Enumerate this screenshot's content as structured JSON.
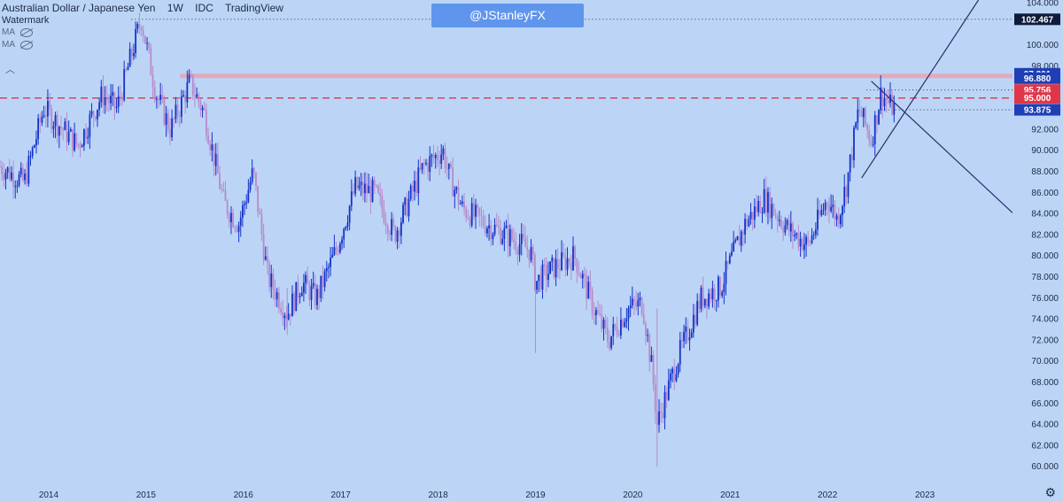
{
  "header": {
    "symbol": "Australian Dollar / Japanese Yen",
    "interval": "1W",
    "source": "IDC",
    "platform": "TradingView",
    "watermark_label": "Watermark",
    "indicators": [
      "MA",
      "MA"
    ]
  },
  "badge": "@JStanleyFX",
  "colors": {
    "background": "#bcd5f7",
    "candle_up": "#1432c8",
    "candle_down": "#b78acb",
    "resistance_band": "#e8a3b3",
    "red_line": "#e0364a",
    "trend_line": "#2d2d6b",
    "price_tag_blue": "#1e3fb5",
    "price_tag_red": "#e0364a"
  },
  "chart_data": {
    "type": "candlestick",
    "x_ticks": [
      "2014",
      "2015",
      "2016",
      "2017",
      "2018",
      "2019",
      "2020",
      "2021",
      "2022",
      "2023"
    ],
    "y_ticks": [
      "104.000",
      "100.000",
      "98.000",
      "92.000",
      "90.000",
      "88.000",
      "86.000",
      "84.000",
      "82.000",
      "80.000",
      "78.000",
      "76.000",
      "74.000",
      "72.000",
      "70.000",
      "68.000",
      "66.000",
      "64.000",
      "62.000",
      "60.000"
    ],
    "ylim": [
      58.5,
      104.3
    ],
    "xlim": [
      2013.5,
      2023.9
    ],
    "price_labels": [
      {
        "value": 102.467,
        "text": "102.467",
        "style": "dark"
      },
      {
        "value": 97.301,
        "text": "97.301",
        "style": "blue"
      },
      {
        "value": 96.88,
        "text": "96.880",
        "style": "blue"
      },
      {
        "value": 95.756,
        "text": "95.756",
        "style": "red"
      },
      {
        "value": 95.0,
        "text": "95.000",
        "style": "red"
      },
      {
        "value": 93.875,
        "text": "93.875",
        "style": "blue"
      }
    ],
    "resistance_zone": {
      "low": 96.88,
      "high": 97.301,
      "from": 2015.35
    },
    "dashed_red_level": 95.0,
    "dotted_levels": [
      {
        "value": 102.467,
        "from": 2014.85
      },
      {
        "value": 95.756,
        "from": 2022.4
      },
      {
        "value": 93.875,
        "from": 2022.55
      }
    ],
    "trend_lines": [
      {
        "x1": 2022.45,
        "y1": 96.6,
        "x2": 2023.9,
        "y2": 84.1
      },
      {
        "x1": 2022.35,
        "y1": 87.4,
        "x2": 2023.55,
        "y2": 104.3
      }
    ],
    "anchors": [
      [
        2013.5,
        88.5
      ],
      [
        2013.75,
        87.0
      ],
      [
        2013.95,
        94.0
      ],
      [
        2014.3,
        90.5
      ],
      [
        2014.55,
        95.3
      ],
      [
        2014.7,
        94.0
      ],
      [
        2014.95,
        102.5
      ],
      [
        2015.1,
        95.5
      ],
      [
        2015.25,
        92.0
      ],
      [
        2015.45,
        96.5
      ],
      [
        2015.6,
        93.5
      ],
      [
        2015.8,
        85.0
      ],
      [
        2015.95,
        83.0
      ],
      [
        2016.1,
        88.0
      ],
      [
        2016.25,
        78.0
      ],
      [
        2016.45,
        74.5
      ],
      [
        2016.6,
        77.5
      ],
      [
        2016.75,
        76.0
      ],
      [
        2016.95,
        80.5
      ],
      [
        2017.15,
        86.5
      ],
      [
        2017.35,
        86.0
      ],
      [
        2017.55,
        82.0
      ],
      [
        2017.85,
        88.5
      ],
      [
        2018.05,
        90.0
      ],
      [
        2018.1,
        88.0
      ],
      [
        2018.25,
        84.5
      ],
      [
        2018.5,
        83.0
      ],
      [
        2018.7,
        82.0
      ],
      [
        2018.95,
        80.5
      ],
      [
        2019.0,
        77.5
      ],
      [
        2019.2,
        79.0
      ],
      [
        2019.4,
        80.0
      ],
      [
        2019.6,
        75.0
      ],
      [
        2019.75,
        72.0
      ],
      [
        2019.95,
        75.0
      ],
      [
        2020.1,
        75.5
      ],
      [
        2020.2,
        69.0
      ],
      [
        2020.25,
        64.0
      ],
      [
        2020.45,
        70.0
      ],
      [
        2020.7,
        76.0
      ],
      [
        2020.9,
        77.0
      ],
      [
        2021.15,
        83.0
      ],
      [
        2021.35,
        85.5
      ],
      [
        2021.6,
        82.5
      ],
      [
        2021.8,
        81.0
      ],
      [
        2022.0,
        85.5
      ],
      [
        2022.1,
        83.5
      ],
      [
        2022.2,
        87.0
      ],
      [
        2022.32,
        94.0
      ],
      [
        2022.45,
        91.0
      ],
      [
        2022.55,
        95.5
      ],
      [
        2022.65,
        94.2
      ],
      [
        2022.7,
        94.0
      ]
    ]
  }
}
